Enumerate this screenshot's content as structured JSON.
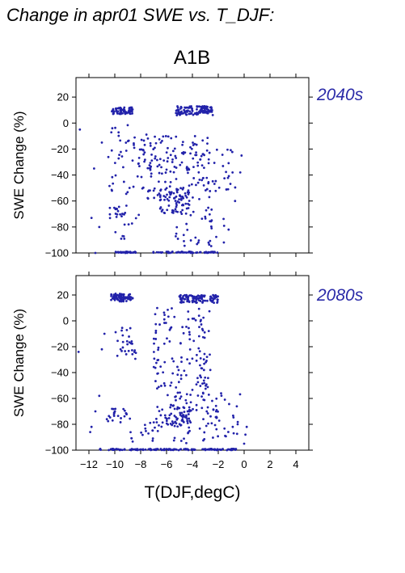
{
  "page": {
    "title": "Change in apr01 SWE vs. T_DJF:",
    "scenario": "A1B"
  },
  "colors": {
    "points": "#2222aa",
    "period_label": "#2a2aa8",
    "frame": "#000000"
  },
  "chart_data": {
    "type": "scatter",
    "shared_xlabel": "T(DJF,degC)",
    "xlim": [
      -13,
      5
    ],
    "x_ticks": [
      -12,
      -10,
      -8,
      -6,
      -4,
      -2,
      0,
      2,
      4
    ],
    "panels": [
      {
        "label": "2040s",
        "ylabel": "SWE Change (%)",
        "ylim": [
          -100,
          35
        ],
        "y_ticks": [
          20,
          0,
          -20,
          -40,
          -60,
          -80,
          -100
        ],
        "clusters": [
          {
            "x": [
              -10.3,
              -8.6
            ],
            "y": [
              7,
              12
            ],
            "n": 70
          },
          {
            "x": [
              -5.3,
              -2.4
            ],
            "y": [
              6,
              13
            ],
            "n": 110
          },
          {
            "x": [
              -10.0,
              -8.2
            ],
            "y": [
              -100,
              -99
            ],
            "n": 30
          },
          {
            "x": [
              -7.2,
              -2.0
            ],
            "y": [
              -100,
              -99
            ],
            "n": 60
          },
          {
            "x": [
              -10.5,
              -9.0
            ],
            "y": [
              -75,
              -63
            ],
            "n": 18
          },
          {
            "x": [
              -6.5,
              -4.2
            ],
            "y": [
              -70,
              -50
            ],
            "n": 60
          },
          {
            "x": [
              -7.5,
              -2.5
            ],
            "y": [
              -60,
              -10
            ],
            "n": 150
          },
          {
            "x": [
              -10.5,
              -7.5
            ],
            "y": [
              -55,
              0
            ],
            "n": 55
          },
          {
            "x": [
              -5.5,
              -1.5
            ],
            "y": [
              -95,
              -65
            ],
            "n": 40
          },
          {
            "x": [
              -10.0,
              -8.0
            ],
            "y": [
              -95,
              -70
            ],
            "n": 10
          },
          {
            "x": [
              -2.5,
              -0.5
            ],
            "y": [
              -55,
              -20
            ],
            "n": 22
          }
        ],
        "points": [
          {
            "x": -12.7,
            "y": -5
          },
          {
            "x": -11.8,
            "y": -73
          },
          {
            "x": -11.6,
            "y": -35
          },
          {
            "x": -11.2,
            "y": -80
          },
          {
            "x": -11.0,
            "y": -15
          },
          {
            "x": -11.5,
            "y": -100
          },
          {
            "x": -0.3,
            "y": -38
          },
          {
            "x": -0.2,
            "y": -25
          },
          {
            "x": -0.7,
            "y": -60
          },
          {
            "x": -1.2,
            "y": -82
          }
        ]
      },
      {
        "label": "2080s",
        "ylabel": "SWE Change (%)",
        "ylim": [
          -100,
          35
        ],
        "y_ticks": [
          20,
          0,
          -20,
          -40,
          -60,
          -80,
          -100
        ],
        "clusters": [
          {
            "x": [
              -10.3,
              -8.6
            ],
            "y": [
              15,
              21
            ],
            "n": 75
          },
          {
            "x": [
              -5.0,
              -2.0
            ],
            "y": [
              14,
              20
            ],
            "n": 100
          },
          {
            "x": [
              -11.2,
              -0.5
            ],
            "y": [
              -100,
              -99
            ],
            "n": 140
          },
          {
            "x": [
              -10.8,
              -9.0
            ],
            "y": [
              -80,
              -68
            ],
            "n": 22
          },
          {
            "x": [
              -6.8,
              -4.0
            ],
            "y": [
              -82,
              -65
            ],
            "n": 60
          },
          {
            "x": [
              -10.0,
              -8.3
            ],
            "y": [
              -30,
              -5
            ],
            "n": 28
          },
          {
            "x": [
              -7.0,
              -2.5
            ],
            "y": [
              -60,
              10
            ],
            "n": 140
          },
          {
            "x": [
              -5.5,
              -2.0
            ],
            "y": [
              -95,
              -60
            ],
            "n": 60
          },
          {
            "x": [
              -2.5,
              -0.3
            ],
            "y": [
              -92,
              -55
            ],
            "n": 20
          },
          {
            "x": [
              -9.0,
              -6.5
            ],
            "y": [
              -95,
              -75
            ],
            "n": 20
          }
        ],
        "points": [
          {
            "x": -12.8,
            "y": -24
          },
          {
            "x": -11.8,
            "y": -82
          },
          {
            "x": -11.5,
            "y": -70
          },
          {
            "x": -11.2,
            "y": -58
          },
          {
            "x": -11.0,
            "y": -22
          },
          {
            "x": -10.8,
            "y": -10
          },
          {
            "x": -11.9,
            "y": -86
          },
          {
            "x": 0.2,
            "y": -82
          },
          {
            "x": 0.1,
            "y": -88
          },
          {
            "x": 0.0,
            "y": -95
          },
          {
            "x": -0.5,
            "y": -80
          }
        ]
      }
    ]
  }
}
